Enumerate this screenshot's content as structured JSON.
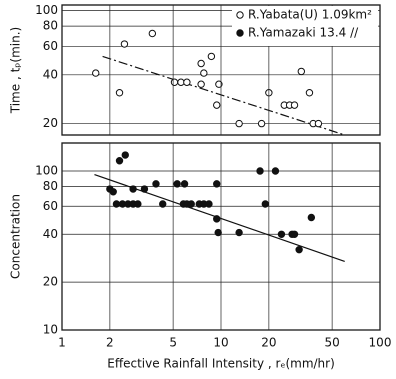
{
  "chart_data": [
    {
      "type": "scatter",
      "ylabel": "Time , tₚ(min.)",
      "xlim": [
        1,
        100
      ],
      "ylim": [
        17,
        108
      ],
      "log": true,
      "grid": true,
      "yticks": [
        20,
        40,
        60,
        80,
        100
      ],
      "legend": "upper right",
      "series": [
        {
          "name": "R.Yabata(U) 1.09km²",
          "marker": "open",
          "color": "#111",
          "x": [
            1.63,
            2.47,
            2.3,
            3.7,
            5.1,
            5.6,
            6.1,
            7.5,
            7.5,
            7.8,
            8.7,
            9.4,
            9.7,
            13,
            18,
            20,
            25,
            27,
            29,
            32,
            36,
            38,
            41
          ],
          "values": [
            41,
            62,
            31,
            72,
            36,
            36,
            36,
            35,
            47,
            41,
            52,
            26,
            35,
            20,
            20,
            31,
            26,
            26,
            26,
            42,
            31,
            20,
            20
          ]
        }
      ],
      "fit": {
        "style": "dashdot",
        "x": [
          1.8,
          60
        ],
        "y": [
          52,
          17
        ]
      }
    },
    {
      "type": "scatter",
      "ylabel": "Concentration",
      "xlabel": "Effective Rainfall Intensity , rₑ(mm/hr)",
      "xlim": [
        1,
        100
      ],
      "ylim": [
        10,
        150
      ],
      "log": true,
      "grid": true,
      "xticks": [
        1,
        2,
        5,
        10,
        20,
        50,
        100
      ],
      "yticks": [
        10,
        20,
        40,
        60,
        80,
        100
      ],
      "series": [
        {
          "name": "R.Yamazaki 13.4 //",
          "marker": "filled",
          "color": "#111",
          "x": [
            2.0,
            2.1,
            2.3,
            2.5,
            2.2,
            2.4,
            2.6,
            2.8,
            3.0,
            2.8,
            3.3,
            3.9,
            4.3,
            5.3,
            5.8,
            6.1,
            6.5,
            5.9,
            7.3,
            7.8,
            8.4,
            9.4,
            9.4,
            9.6,
            13,
            17.6,
            19,
            22,
            24,
            28,
            29,
            31,
            37
          ],
          "values": [
            77,
            74,
            116,
            126,
            62,
            62,
            62,
            62,
            62,
            77,
            77,
            83,
            62,
            83,
            62,
            62,
            62,
            83,
            62,
            62,
            62,
            83,
            50,
            41,
            41,
            100,
            62,
            100,
            40,
            40,
            40,
            32,
            51
          ]
        }
      ],
      "fit": {
        "style": "solid",
        "x": [
          1.6,
          60
        ],
        "y": [
          95,
          27
        ]
      }
    }
  ]
}
